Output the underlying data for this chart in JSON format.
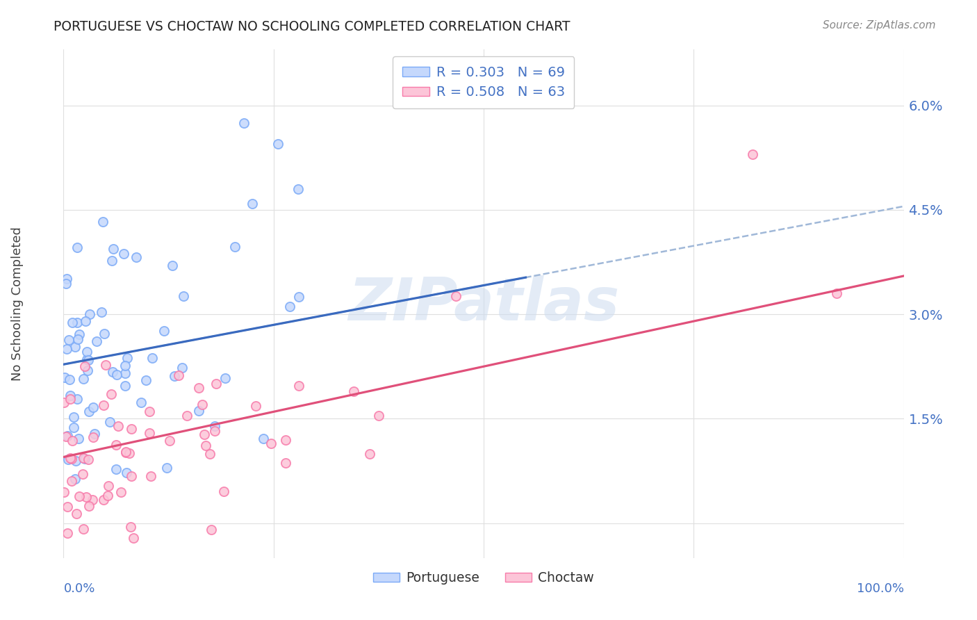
{
  "title": "PORTUGUESE VS CHOCTAW NO SCHOOLING COMPLETED CORRELATION CHART",
  "source": "Source: ZipAtlas.com",
  "ylabel": "No Schooling Completed",
  "xlim": [
    0.0,
    100.0
  ],
  "ylim": [
    -0.5,
    6.8
  ],
  "ytick_positions": [
    0.0,
    1.5,
    3.0,
    4.5,
    6.0
  ],
  "ytick_labels": [
    "",
    "1.5%",
    "3.0%",
    "4.5%",
    "6.0%"
  ],
  "xtick_positions": [
    0,
    25,
    50,
    75,
    100
  ],
  "portuguese_scatter_face": "#c5d8fc",
  "portuguese_scatter_edge": "#7baaf7",
  "choctaw_scatter_face": "#fcc5d8",
  "choctaw_scatter_edge": "#f77baa",
  "trend_portuguese_solid": "#3a6abf",
  "trend_portuguese_dashed": "#a0b8d8",
  "trend_choctaw_solid": "#e0507a",
  "grid_color": "#e0e0e0",
  "title_color": "#222222",
  "axis_label_color": "#4472c4",
  "source_color": "#888888",
  "watermark": "ZIPatlas",
  "watermark_color": "#ccdcf0",
  "background_color": "#ffffff",
  "legend_entry_1": "R = 0.303   N = 69",
  "legend_entry_2": "R = 0.508   N = 63",
  "bottom_legend_1": "Portuguese",
  "bottom_legend_2": "Choctaw",
  "blue_trend_x0": 0,
  "blue_trend_y0": 2.28,
  "blue_trend_x1": 100,
  "blue_trend_y1": 4.55,
  "blue_solid_x_end": 55,
  "pink_trend_x0": 0,
  "pink_trend_y0": 0.95,
  "pink_trend_x1": 100,
  "pink_trend_y1": 3.55
}
